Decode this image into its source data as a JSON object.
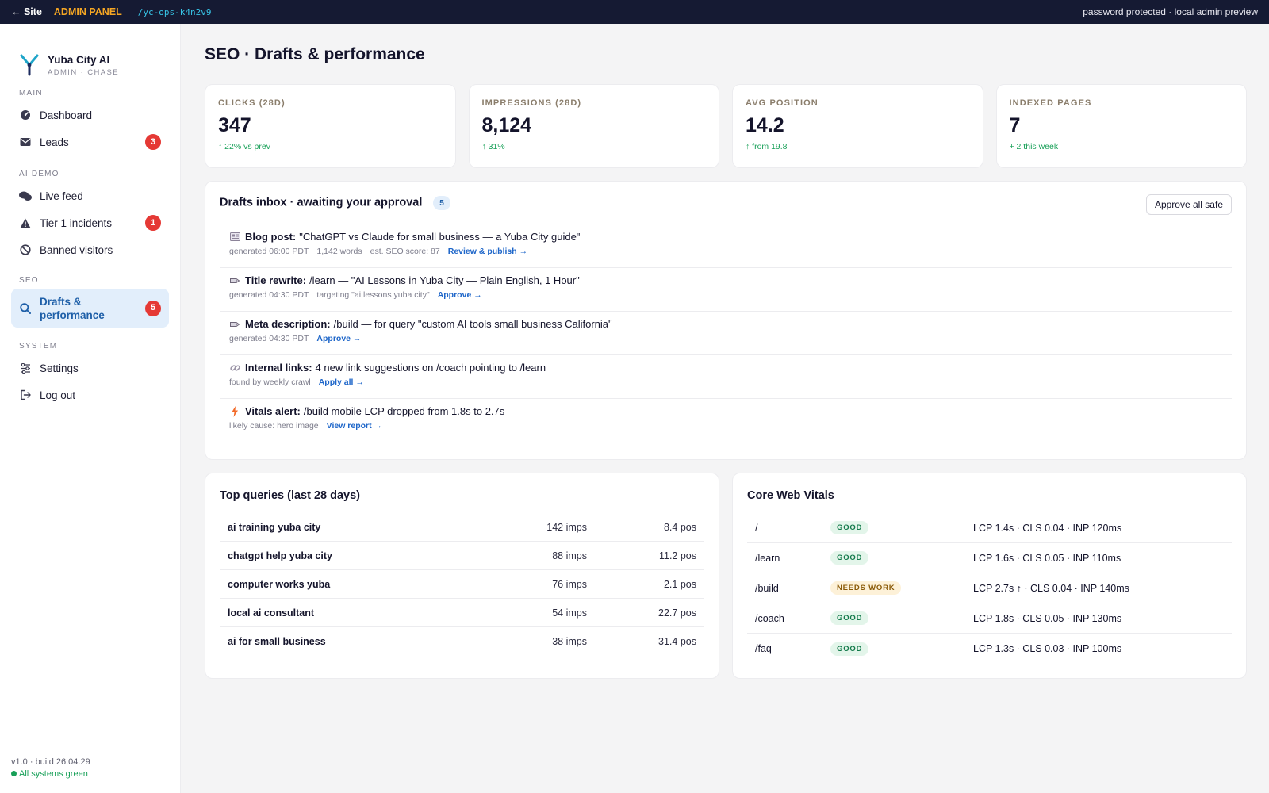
{
  "topbar": {
    "back_label": "← Site",
    "admin_label": "ADMIN PANEL",
    "slug": "/yc-ops-k4n2v9",
    "right_text": "password protected · local admin preview"
  },
  "brand": {
    "name": "Yuba City AI",
    "sub": "ADMIN · CHASE"
  },
  "sidebar": {
    "sections": [
      {
        "label": "MAIN"
      },
      {
        "label": "AI DEMO"
      },
      {
        "label": "SEO"
      },
      {
        "label": "SYSTEM"
      }
    ],
    "items": [
      {
        "label": "Dashboard",
        "icon": "dashboard-icon"
      },
      {
        "label": "Leads",
        "icon": "envelope-icon",
        "badge": "3"
      },
      {
        "label": "Live feed",
        "icon": "chat-icon"
      },
      {
        "label": "Tier 1 incidents",
        "icon": "warning-icon",
        "badge": "1"
      },
      {
        "label": "Banned visitors",
        "icon": "ban-icon"
      },
      {
        "label": "Drafts & performance",
        "icon": "search-chart-icon",
        "badge": "5"
      },
      {
        "label": "Settings",
        "icon": "sliders-icon"
      },
      {
        "label": "Log out",
        "icon": "logout-icon"
      }
    ],
    "footer": {
      "version": "v1.0 · build 26.04.29",
      "status": "All systems green"
    }
  },
  "main": {
    "title": "SEO · Drafts & performance",
    "stats": [
      {
        "label": "CLICKS (28D)",
        "value": "347",
        "delta": "↑ 22% vs prev"
      },
      {
        "label": "IMPRESSIONS (28D)",
        "value": "8,124",
        "delta": "↑ 31%"
      },
      {
        "label": "AVG POSITION",
        "value": "14.2",
        "delta": "↑ from 19.8"
      },
      {
        "label": "INDEXED PAGES",
        "value": "7",
        "delta": "+ 2 this week"
      }
    ],
    "drafts": {
      "title": "Drafts inbox · awaiting your approval",
      "count": "5",
      "approve_all_label": "Approve all safe",
      "items": [
        {
          "icon": "newspaper-icon",
          "kind": "Blog post:",
          "text": "\"ChatGPT vs Claude for small business — a Yuba City guide\"",
          "meta": [
            "generated 06:00 PDT",
            "1,142 words",
            "est. SEO score: 87"
          ],
          "action": "Review & publish →"
        },
        {
          "icon": "tag-icon",
          "kind": "Title rewrite:",
          "text": "/learn — \"AI Lessons in Yuba City — Plain English, 1 Hour\"",
          "meta": [
            "generated 04:30 PDT",
            "targeting \"ai lessons yuba city\""
          ],
          "action": "Approve →"
        },
        {
          "icon": "tag-icon",
          "kind": "Meta description:",
          "text": "/build — for query \"custom AI tools small business California\"",
          "meta": [
            "generated 04:30 PDT"
          ],
          "action": "Approve →"
        },
        {
          "icon": "link-icon",
          "kind": "Internal links:",
          "text": "4 new link suggestions on /coach pointing to /learn",
          "meta": [
            "found by weekly crawl"
          ],
          "action": "Apply all →"
        },
        {
          "icon": "lightning-icon",
          "kind": "Vitals alert:",
          "text": "/build mobile LCP dropped from 1.8s to 2.7s",
          "meta": [
            "likely cause: hero image"
          ],
          "action": "View report →"
        }
      ]
    },
    "queries": {
      "title": "Top queries (last 28 days)",
      "rows": [
        {
          "query": "ai training yuba city",
          "imps": "142 imps",
          "pos": "8.4 pos"
        },
        {
          "query": "chatgpt help yuba city",
          "imps": "88 imps",
          "pos": "11.2 pos"
        },
        {
          "query": "computer works yuba",
          "imps": "76 imps",
          "pos": "2.1 pos"
        },
        {
          "query": "local ai consultant",
          "imps": "54 imps",
          "pos": "22.7 pos"
        },
        {
          "query": "ai for small business",
          "imps": "38 imps",
          "pos": "31.4 pos"
        }
      ]
    },
    "vitals": {
      "title": "Core Web Vitals",
      "rows": [
        {
          "path": "/",
          "status": "GOOD",
          "level": "good",
          "metrics": "LCP 1.4s · CLS 0.04 · INP 120ms"
        },
        {
          "path": "/learn",
          "status": "GOOD",
          "level": "good",
          "metrics": "LCP 1.6s · CLS 0.05 · INP 110ms"
        },
        {
          "path": "/build",
          "status": "NEEDS WORK",
          "level": "warn",
          "metrics": "LCP 2.7s ↑ · CLS 0.04 · INP 140ms"
        },
        {
          "path": "/coach",
          "status": "GOOD",
          "level": "good",
          "metrics": "LCP 1.8s · CLS 0.05 · INP 130ms"
        },
        {
          "path": "/faq",
          "status": "GOOD",
          "level": "good",
          "metrics": "LCP 1.3s · CLS 0.03 · INP 100ms"
        }
      ]
    }
  },
  "colors": {
    "topbar_bg": "#151a33",
    "admin_accent": "#f5a623",
    "slug_accent": "#38c6e8",
    "active_nav_bg": "#e2eefb",
    "active_nav_text": "#1e5fa8",
    "badge_red": "#e53935",
    "positive_green": "#18a058",
    "link_blue": "#1e66c9"
  }
}
